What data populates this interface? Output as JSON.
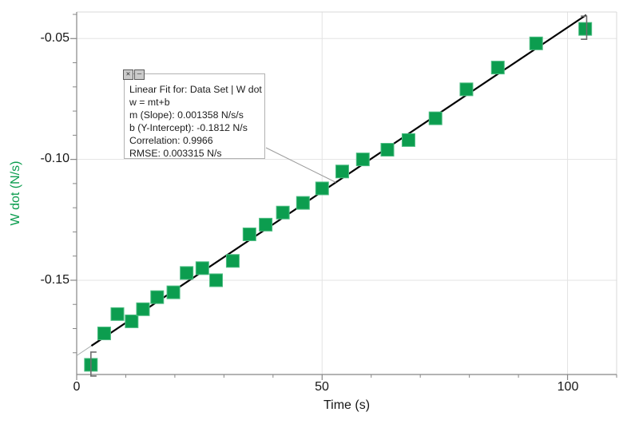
{
  "chart_data": {
    "type": "scatter",
    "title": "",
    "xlabel": "Time (s)",
    "ylabel": "W dot (N/s)",
    "xlim": [
      0,
      110
    ],
    "ylim": [
      -0.189,
      -0.039
    ],
    "x_major_ticks": [
      0,
      50,
      100
    ],
    "x_tick_labels": [
      "0",
      "50",
      "100"
    ],
    "x_minor_step": 10,
    "y_major_ticks": [
      -0.05,
      -0.1,
      -0.15
    ],
    "y_tick_labels": [
      "-0.05",
      "-0.10",
      "-0.15"
    ],
    "y_minor_step": 0.01,
    "grid": "major-only",
    "legend": "none",
    "series": [
      {
        "name": "Data Set | W dot",
        "marker": "square",
        "marker_size_px": 16,
        "color": "#0c9d4f",
        "x": [
          2.9,
          5.6,
          8.3,
          11.2,
          13.5,
          16.4,
          19.7,
          22.4,
          25.6,
          28.4,
          31.8,
          35.2,
          38.5,
          42.0,
          46.1,
          50.0,
          54.1,
          58.3,
          63.3,
          67.6,
          73.1,
          79.4,
          85.8,
          93.6,
          103.6
        ],
        "y": [
          -0.185,
          -0.172,
          -0.164,
          -0.167,
          -0.162,
          -0.157,
          -0.155,
          -0.147,
          -0.145,
          -0.15,
          -0.142,
          -0.131,
          -0.127,
          -0.122,
          -0.118,
          -0.112,
          -0.105,
          -0.1,
          -0.096,
          -0.092,
          -0.083,
          -0.071,
          -0.062,
          -0.052,
          -0.046
        ]
      }
    ],
    "fit": {
      "type": "linear",
      "m": 0.001358,
      "b": -0.1812,
      "t_range": [
        3.0,
        103.8
      ],
      "line_color": "#000000"
    }
  },
  "fit_box": {
    "lines": [
      "Linear Fit for: Data Set | W dot",
      "w = mt+b",
      "m (Slope): 0.001358 N/s/s",
      "b (Y-Intercept): -0.1812 N/s",
      "Correlation: 0.9966",
      "RMSE: 0.003315 N/s"
    ]
  },
  "icons": {
    "close_glyph": "✕",
    "minimize_glyph": "—"
  },
  "colors": {
    "marker_green": "#0c9d4f",
    "axis_gray": "#878787",
    "grid_gray": "#e3e3e3",
    "border_gray": "#d8d8d8",
    "bracket_gray": "#6e6e6e",
    "callout_gray": "#9c9c9c",
    "fit_black": "#000000"
  }
}
